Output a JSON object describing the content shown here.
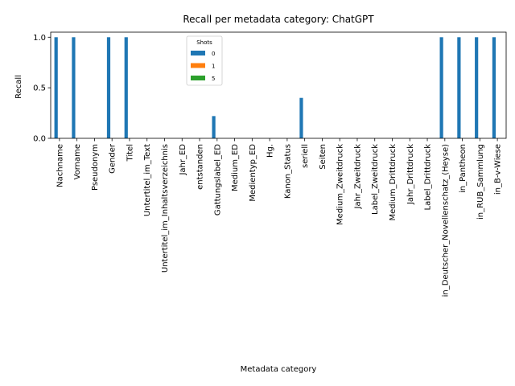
{
  "chart_data": {
    "type": "bar",
    "title": "Recall per metadata category: ChatGPT",
    "xlabel": "Metadata category",
    "ylabel": "Recall",
    "ylim": [
      0,
      1.05
    ],
    "yticks": [
      0.0,
      0.5,
      1.0
    ],
    "ytick_labels": [
      "0.0",
      "0.5",
      "1.0"
    ],
    "legend": {
      "title": "Shots",
      "placement": "top-center"
    },
    "categories": [
      "Nachname",
      "Vorname",
      "Pseudonym",
      "Gender",
      "Titel",
      "Untertitel_im_Text",
      "Untertitel_im_Inhaltsverzeichnis",
      "Jahr_ED",
      "entstanden",
      "Gattungslabel_ED",
      "Medium_ED",
      "Medientyp_ED",
      "Hg.",
      "Kanon_Status",
      "seriell",
      "Seiten",
      "Medium_Zweitdruck",
      "Jahr_Zweitdruck",
      "Label_Zweitdruck",
      "Medium_Drittdruck",
      "Jahr_Drittdruck",
      "Label_Drittdruck",
      "in_Deutscher_Novellenschatz_(Heyse)",
      "in_Pantheon",
      "in_RUB_Sammlung",
      "in_B-v-Wiese"
    ],
    "series": [
      {
        "name": "0",
        "color": "#1f77b4",
        "values": [
          1.0,
          1.0,
          0,
          1.0,
          1.0,
          0,
          0,
          0,
          0,
          0.22,
          0,
          0,
          0,
          0,
          0.4,
          0,
          0,
          0,
          0,
          0,
          0,
          0,
          1.0,
          1.0,
          1.0,
          1.0
        ]
      },
      {
        "name": "1",
        "color": "#ff7f0e",
        "values": [
          0,
          0,
          0,
          0,
          0,
          0,
          0,
          0,
          0,
          0,
          0,
          0,
          0,
          0,
          0,
          0,
          0,
          0,
          0,
          0,
          0,
          0,
          0,
          0,
          0,
          0
        ]
      },
      {
        "name": "5",
        "color": "#2ca02c",
        "values": [
          0,
          0,
          0,
          0,
          0,
          0,
          0,
          0,
          0,
          0,
          0,
          0,
          0,
          0,
          0,
          0,
          0,
          0,
          0,
          0,
          0,
          0,
          0,
          0,
          0,
          0
        ]
      }
    ]
  }
}
